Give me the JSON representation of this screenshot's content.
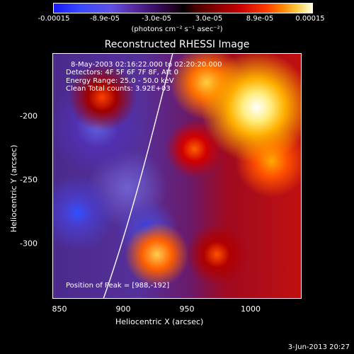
{
  "colorbar": {
    "ticks": [
      "-0.00015",
      "-8.9e-05",
      "-3.0e-05",
      "3.0e-05",
      "8.9e-05",
      "0.00015"
    ],
    "unit": "(photons cm⁻² s⁻¹ asec⁻²)"
  },
  "title": "Reconstructed RHESSI Image",
  "info": {
    "time": "8-May-2003 02:16:22.000 to 02:20:20.000",
    "detectors": "Detectors: 4F 5F 6F 7F 8F, Att 0",
    "energy": "Energy Range: 25.0 - 50.0 keV",
    "method": "Clean     Total counts: 3.92E+03",
    "peak": "Position of Peak = [988,-192]"
  },
  "axes": {
    "xlabel": "Heliocentric X (arcsec)",
    "ylabel": "Heliocentric Y (arcsec)",
    "xticks": [
      "850",
      "900",
      "950",
      "1000"
    ],
    "yticks": [
      "-200",
      "-250",
      "-300"
    ]
  },
  "footer_date": "3-Jun-2013 20:27",
  "colors": {
    "background": "#000000",
    "text": "#ffffff"
  }
}
